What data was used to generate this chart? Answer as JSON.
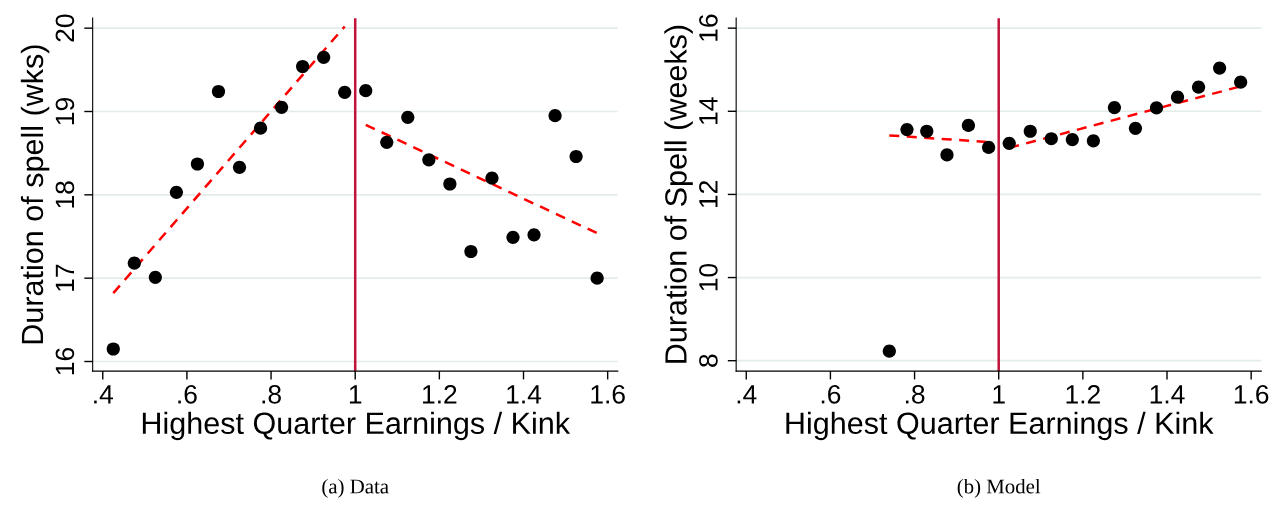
{
  "chart_data": [
    {
      "type": "scatter",
      "title": "(a) Data",
      "xlabel": "Highest Quarter Earnings / Kink",
      "ylabel": "Duration of spell (wks)",
      "xlim": [
        0.376,
        1.624
      ],
      "xticks": [
        {
          "value": 0.4,
          "label": ".4"
        },
        {
          "value": 0.6,
          "label": ".6"
        },
        {
          "value": 0.8,
          "label": ".8"
        },
        1,
        1.2,
        1.4,
        1.6
      ],
      "ylim": [
        15.885,
        20.12
      ],
      "yticks": [
        16,
        17,
        18,
        19,
        20
      ],
      "grid": "y",
      "series": [
        {
          "marker": "circle",
          "color": "#000000",
          "x": [
            0.425,
            0.475,
            0.525,
            0.575,
            0.625,
            0.675,
            0.725,
            0.775,
            0.825,
            0.875,
            0.925,
            0.975,
            1.025,
            1.075,
            1.125,
            1.175,
            1.225,
            1.275,
            1.325,
            1.375,
            1.425,
            1.475,
            1.525,
            1.575
          ],
          "values": [
            16.15,
            17.18,
            17.01,
            18.03,
            18.37,
            19.24,
            18.33,
            18.8,
            19.05,
            19.54,
            19.65,
            19.23,
            19.25,
            18.63,
            18.93,
            18.42,
            18.13,
            17.32,
            18.2,
            17.49,
            17.52,
            18.95,
            18.46,
            17.0
          ]
        },
        {
          "type": "line",
          "color": "#ff0000",
          "line_style": "dashed",
          "x": [
            0.425,
            0.975
          ],
          "values": [
            16.82,
            20.02
          ]
        },
        {
          "type": "line",
          "color": "#ff0000",
          "line_style": "dashed",
          "x": [
            1.025,
            1.575
          ],
          "values": [
            18.84,
            17.54
          ]
        }
      ],
      "ref_lines": [
        {
          "axis": "x",
          "value": 1,
          "color": "#c0143c"
        }
      ]
    },
    {
      "type": "scatter",
      "title": "(b) Model",
      "xlabel": "Highest Quarter Earnings / Kink",
      "ylabel": "Duration of Spell (weeks)",
      "xlim": [
        0.376,
        1.624
      ],
      "xticks": [
        {
          "value": 0.4,
          "label": ".4"
        },
        {
          "value": 0.6,
          "label": ".6"
        },
        {
          "value": 0.8,
          "label": ".8"
        },
        1,
        1.2,
        1.4,
        1.6
      ],
      "ylim": [
        7.75,
        16.24
      ],
      "yticks": [
        8,
        10,
        12,
        14,
        16
      ],
      "grid": "y",
      "series": [
        {
          "marker": "circle",
          "color": "#000000",
          "x": [
            0.74,
            0.782,
            0.829,
            0.877,
            0.928,
            0.976,
            1.025,
            1.075,
            1.125,
            1.175,
            1.225,
            1.275,
            1.325,
            1.375,
            1.425,
            1.475,
            1.525,
            1.575
          ],
          "values": [
            8.23,
            13.56,
            13.52,
            12.95,
            13.66,
            13.13,
            13.23,
            13.52,
            13.34,
            13.32,
            13.29,
            14.09,
            13.59,
            14.08,
            14.34,
            14.58,
            15.04,
            14.7
          ]
        },
        {
          "type": "line",
          "color": "#ff0000",
          "line_style": "dashed",
          "x": [
            0.74,
            0.975
          ],
          "values": [
            13.42,
            13.26
          ]
        },
        {
          "type": "line",
          "color": "#ff0000",
          "line_style": "dashed",
          "x": [
            1.025,
            1.575
          ],
          "values": [
            13.12,
            14.6
          ]
        }
      ],
      "ref_lines": [
        {
          "axis": "x",
          "value": 1,
          "color": "#c0143c"
        }
      ]
    }
  ]
}
